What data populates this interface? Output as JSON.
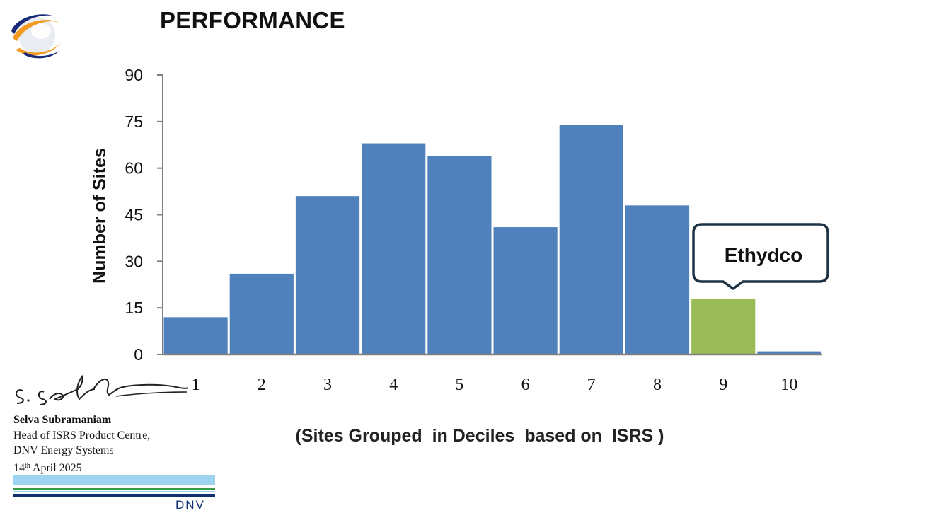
{
  "page": {
    "title": "PERFORMANCE"
  },
  "colors": {
    "bar": "#4f81bd",
    "highlight": "#9bbb59",
    "axis": "#808080",
    "callout_border": "#1f3346",
    "dnv_light_blue": "#9dd5f0",
    "dnv_green": "#3b9a4a",
    "dnv_navy": "#0f2f6e",
    "dnv_text": "#0f2f6e",
    "logo_orange": "#f39a1e",
    "logo_blue": "#1b2a78"
  },
  "icons": {
    "logo": "orbit-globe-logo",
    "signature": "handwritten-signature"
  },
  "chart_data": {
    "type": "bar",
    "categories": [
      "1",
      "2",
      "3",
      "4",
      "5",
      "6",
      "7",
      "8",
      "9",
      "10"
    ],
    "values": [
      12,
      26,
      51,
      68,
      64,
      41,
      74,
      48,
      18,
      1
    ],
    "highlight_index": 8,
    "ylabel": "Number of Sites",
    "xlabel": "(Sites Grouped  in Deciles  based on  ISRS )",
    "ylim": [
      0,
      90
    ],
    "yticks": [
      0,
      15,
      30,
      45,
      60,
      75,
      90
    ],
    "grid": false,
    "annotation": {
      "text": "Ethydco",
      "category": "9"
    }
  },
  "signature": {
    "name": "Selva Subramaniam",
    "line1": "Head of ISRS Product Centre,",
    "line2": "DNV Energy Systems",
    "date_day": "14",
    "date_suffix": "th",
    "date_rest": " April 2025"
  },
  "brand": {
    "wordmark": "DNV"
  }
}
